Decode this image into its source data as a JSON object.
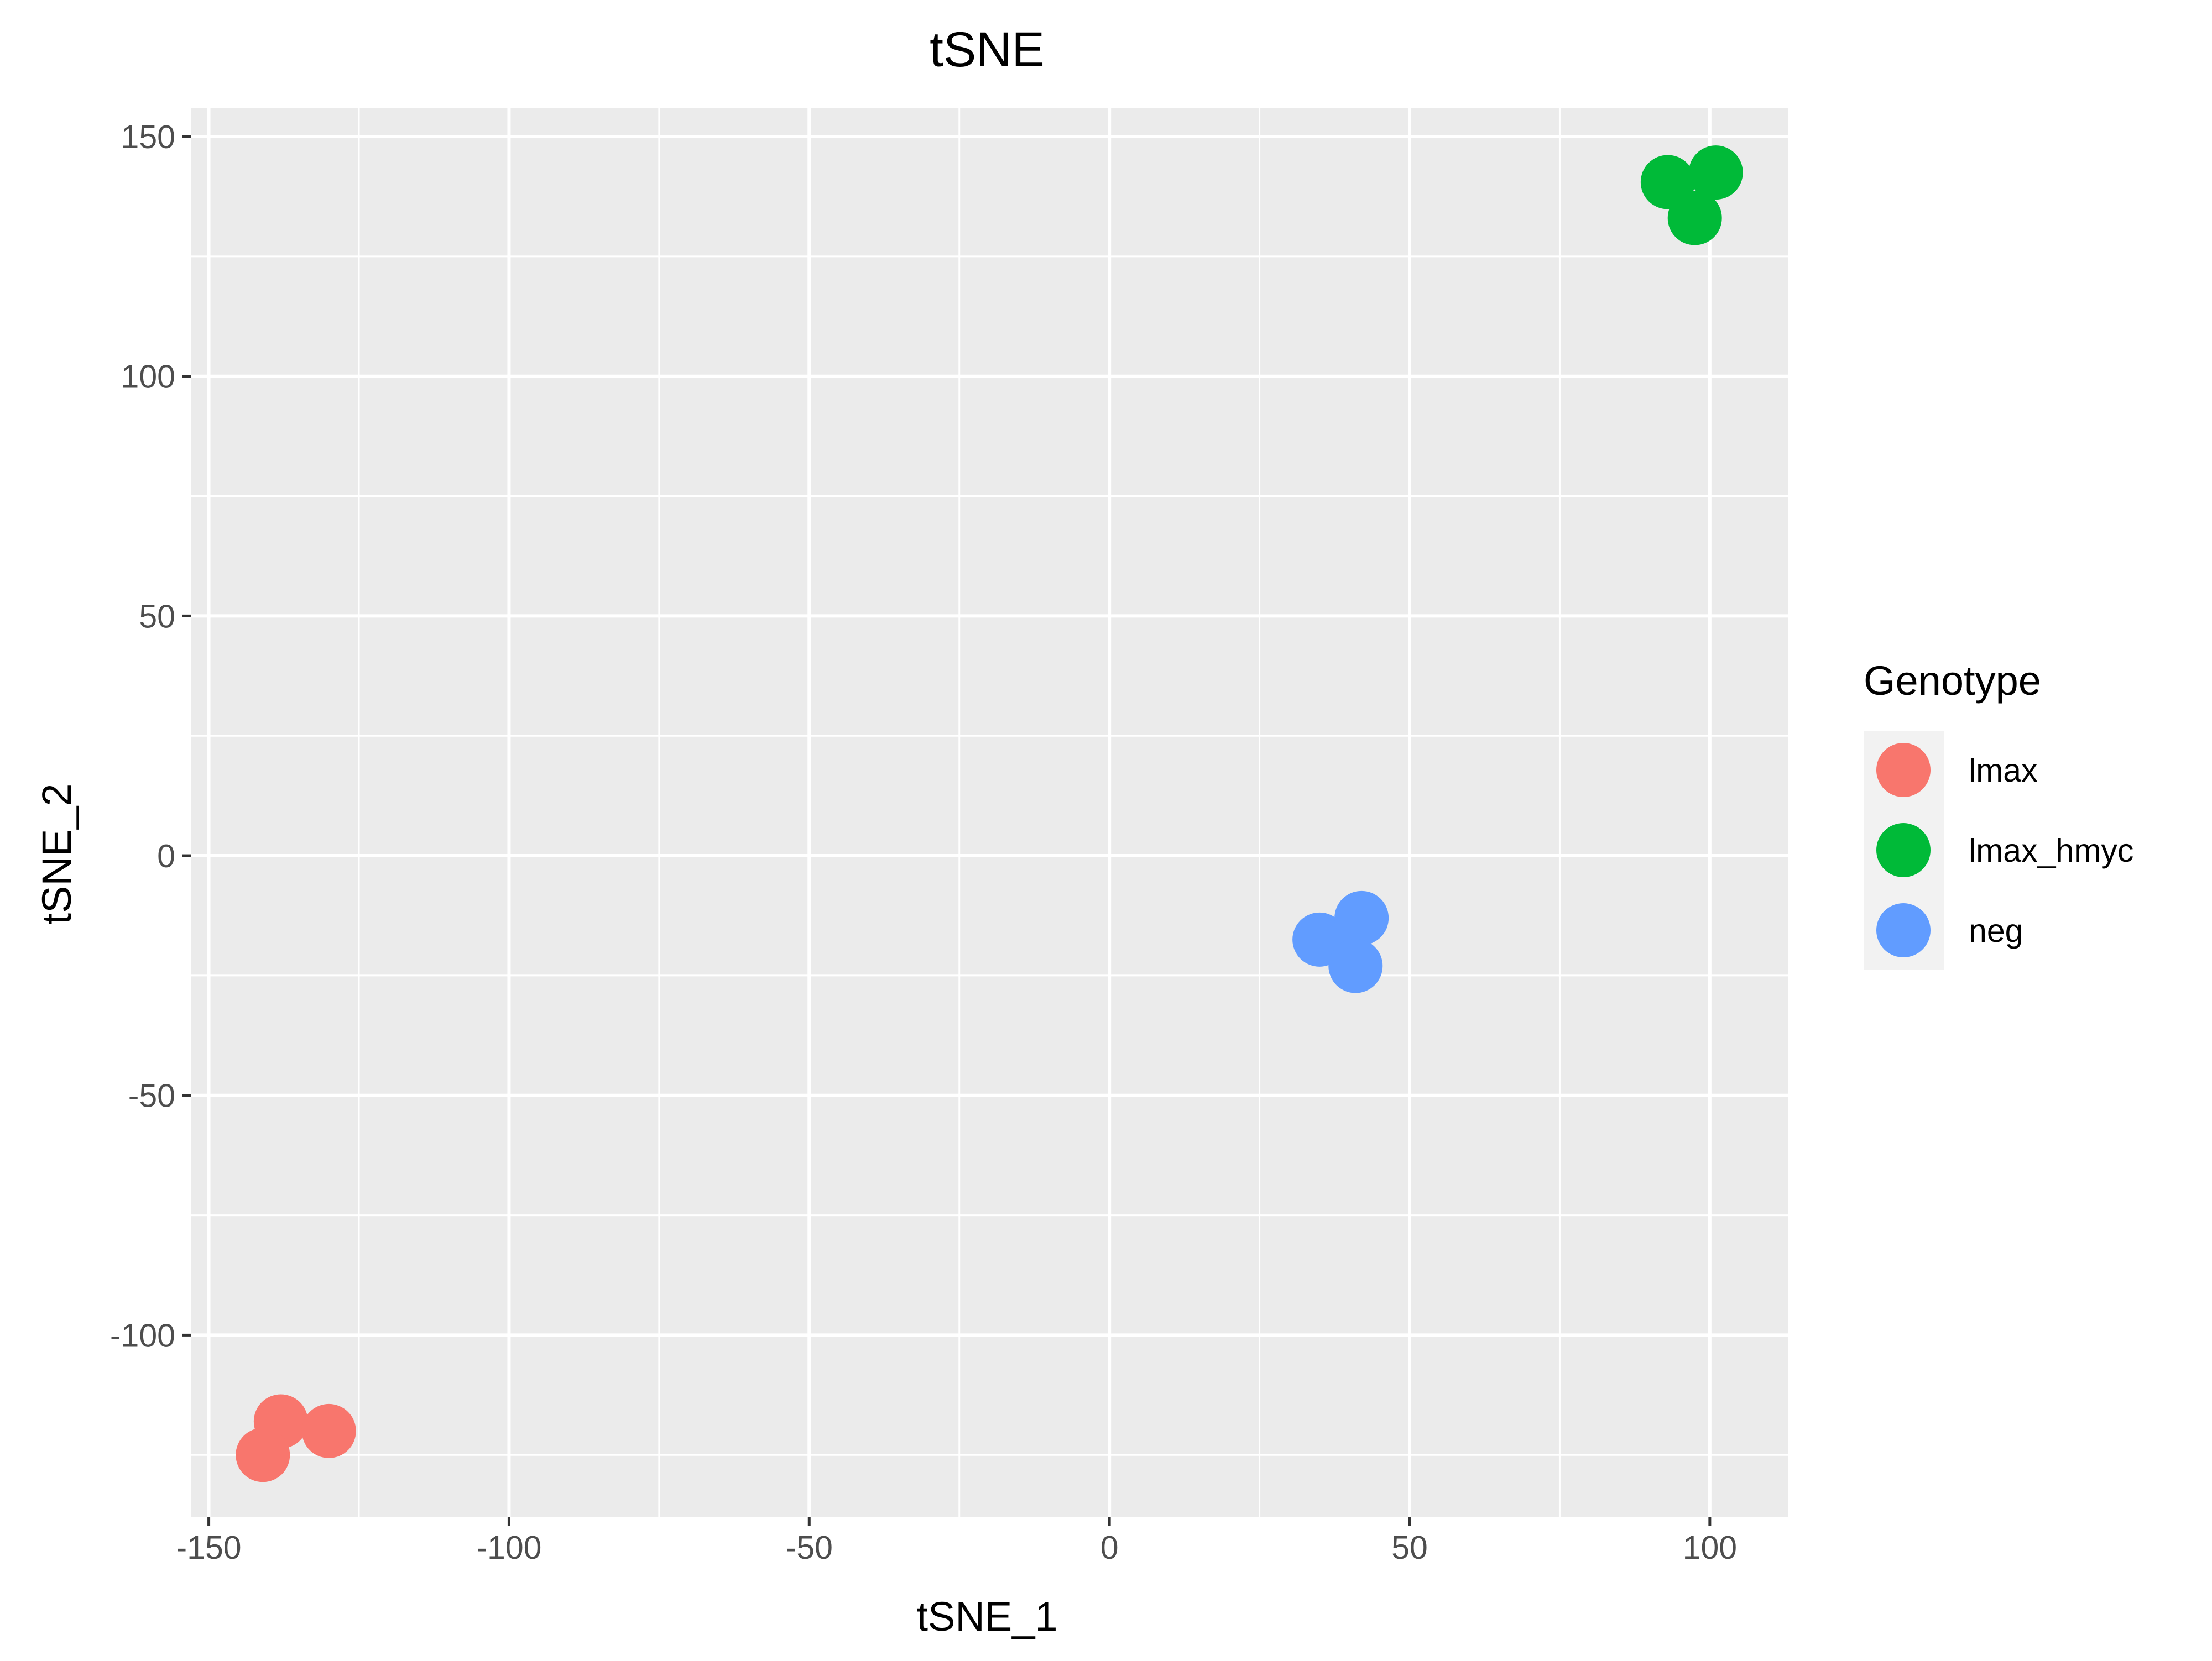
{
  "chart_data": {
    "type": "scatter",
    "title": "tSNE",
    "xlabel": "tSNE_1",
    "ylabel": "tSNE_2",
    "xlim": [
      -153,
      113
    ],
    "ylim": [
      -138,
      156
    ],
    "x_ticks": [
      -150,
      -100,
      -50,
      0,
      50,
      100
    ],
    "y_ticks": [
      -100,
      -50,
      0,
      50,
      100,
      150
    ],
    "x_tick_labels": [
      "-150",
      "-100",
      "-50",
      "0",
      "50",
      "100"
    ],
    "y_tick_labels": [
      "-100",
      "-50",
      "0",
      "50",
      "100",
      "150"
    ],
    "grid": true,
    "background": "#ebebeb",
    "legend": {
      "title": "Genotype",
      "position": "right"
    },
    "series": [
      {
        "name": "lmax",
        "color": "#f8766d",
        "points": [
          [
            -138,
            -118
          ],
          [
            -130,
            -120
          ],
          [
            -141,
            -125
          ]
        ]
      },
      {
        "name": "lmax_hmyc",
        "color": "#00ba38",
        "points": [
          [
            93,
            140.5
          ],
          [
            101,
            142.5
          ],
          [
            97.5,
            133
          ]
        ]
      },
      {
        "name": "neg",
        "color": "#619cff",
        "points": [
          [
            35,
            -17.5
          ],
          [
            42,
            -13
          ],
          [
            41,
            -23
          ]
        ]
      }
    ]
  }
}
